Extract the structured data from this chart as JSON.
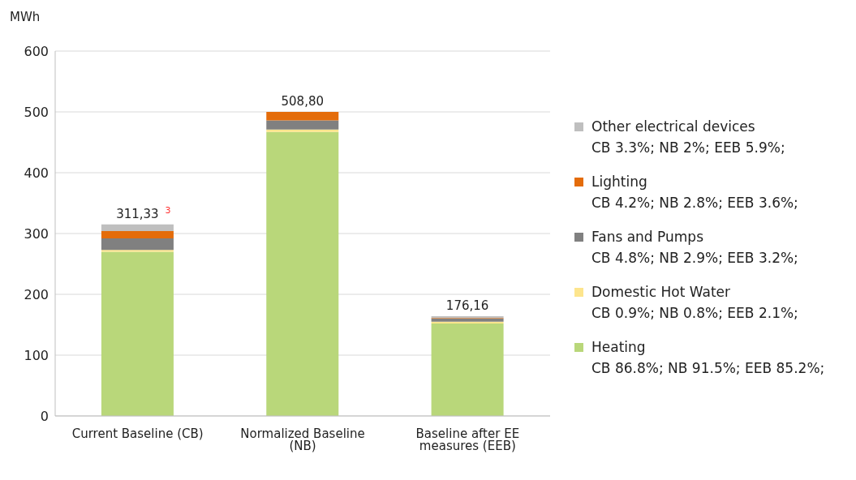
{
  "chart_data": {
    "type": "bar",
    "stacked": true,
    "ylabel": "MWh",
    "categories": [
      "Current Baseline (CB)",
      "Normalized Baseline (NB)",
      "Baseline after EE measures (EEB)"
    ],
    "series": [
      {
        "name": "Heating",
        "color": "#b9d77a",
        "values": [
          270,
          467,
          152
        ]
      },
      {
        "name": "Domestic Hot Water",
        "color": "#fde58d",
        "values": [
          3,
          4,
          3
        ]
      },
      {
        "name": "Fans and Pumps",
        "color": "#808080",
        "values": [
          19,
          15,
          5
        ]
      },
      {
        "name": "Lighting",
        "color": "#e46c0a",
        "values": [
          12,
          14,
          1
        ]
      },
      {
        "name": "Other electrical devices",
        "color": "#bfbfbf",
        "values": [
          11,
          null,
          3
        ]
      }
    ],
    "annotations": [
      "311,33",
      "508,80",
      "176,16",
      "3",
      "CB 86.8%;  NB 91.5%;  EEB 85.2%;",
      "CB 0.9%;  NB 0.8%;  EEB 2.1%;",
      "CB 4.8%;  NB 2.9%; EEB 3.2%;",
      "CB 4.2%;  NB 2.8%;  EEB 3.6%;",
      "CB 3.3%;  NB 2%;  EEB 5.9%;"
    ],
    "ylim": [
      0,
      600
    ],
    "yticks": [
      0,
      100,
      200,
      300,
      400,
      500,
      600
    ],
    "grid": "y",
    "legend": "right"
  }
}
